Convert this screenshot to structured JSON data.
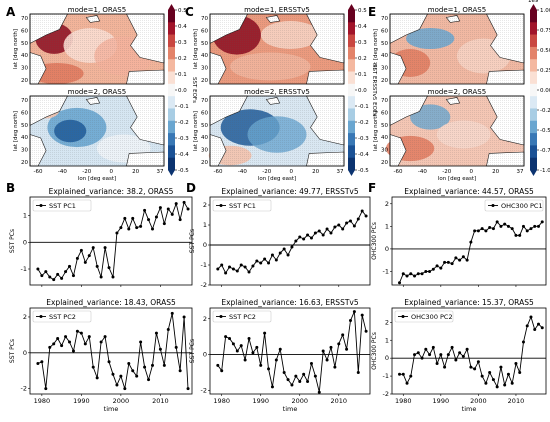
{
  "panels": {
    "A": {
      "letter": "A",
      "maps": [
        {
          "title": "mode=1, ORAS5",
          "pattern": "sst1"
        },
        {
          "title": "mode=2, ORAS5",
          "pattern": "sst2"
        }
      ],
      "ylabel": "lat [deg north]",
      "xlabel": "lon [deg east]",
      "lat_ticks": [
        "70",
        "60",
        "50",
        "40",
        "30",
        "20"
      ],
      "lon_ticks": [
        "-60",
        "-40",
        "-20",
        "0",
        "20",
        "37"
      ]
    },
    "C": {
      "letter": "C",
      "maps": [
        {
          "title": "mode=1, ERSSTv5",
          "pattern": "ers1"
        },
        {
          "title": "mode=2, ERSSTv5",
          "pattern": "ers2"
        }
      ],
      "ylabel": "lat [deg north]",
      "xlabel": "lon [deg east]",
      "lat_ticks": [
        "70",
        "60",
        "50",
        "40",
        "30",
        "20"
      ],
      "lon_ticks": [
        "-60",
        "-40",
        "-20",
        "0",
        "20",
        "37"
      ]
    },
    "E": {
      "letter": "E",
      "maps": [
        {
          "title": "mode=1, ORAS5",
          "pattern": "ohc1"
        },
        {
          "title": "mode=2, ORAS5",
          "pattern": "ohc2"
        }
      ],
      "ylabel": "lat [deg north]",
      "xlabel": "lon [deg east]",
      "lat_ticks": [
        "70",
        "60",
        "50",
        "40",
        "30",
        "20"
      ],
      "lon_ticks": [
        "-60",
        "-40",
        "-20",
        "0",
        "20",
        "37"
      ]
    }
  },
  "colorbars": [
    {
      "label": "SST EOFs",
      "ticks": [
        "0.5",
        "0.4",
        "0.3",
        "0.2",
        "0.1",
        "0.0",
        "-0.1",
        "-0.2",
        "-0.3",
        "-0.4",
        "-0.5"
      ],
      "range": [
        -0.5,
        0.5
      ],
      "exponent": ""
    },
    {
      "label": "SST ERSSTv5 EOFs",
      "ticks": [
        "0.5",
        "0.4",
        "0.3",
        "0.2",
        "0.1",
        "0.0",
        "-0.1",
        "-0.2",
        "-0.3",
        "-0.4",
        "-0.5"
      ],
      "range": [
        -0.5,
        0.5
      ],
      "exponent": ""
    },
    {
      "label": "OHC300 EOFs",
      "ticks": [
        "1.00",
        "0.75",
        "0.50",
        "0.25",
        "0.00",
        "-0.25",
        "-0.50",
        "-0.75",
        "-1.00"
      ],
      "range": [
        -1.0,
        1.0
      ],
      "exponent": "1e9"
    }
  ],
  "colors": {
    "warm_dark": "#8b0a1e",
    "warm": "#e07a5f",
    "neutral": "#f7f7f7",
    "cool": "#6aa6d0",
    "cool_dark": "#1f5a99",
    "land": "#ffffff",
    "coast": "#1a1a1a",
    "line": "#000000"
  },
  "chart_data": [
    {
      "panel": "B",
      "type": "line",
      "letter": "B",
      "title": "Explained_variance: 38.2, ORAS5",
      "ylabel": "SST PCs",
      "xlabel": "",
      "ylim": [
        -1.6,
        1.7
      ],
      "yticks": [
        -1,
        0,
        1
      ],
      "xlim": [
        1977,
        2018
      ],
      "xticks": [
        1980,
        1990,
        2000,
        2010
      ],
      "show_xticks": false,
      "legend_loc": "upper-left",
      "grid": false,
      "series": [
        {
          "name": "SST PC1",
          "x": [
            1979,
            1980,
            1981,
            1982,
            1983,
            1984,
            1985,
            1986,
            1987,
            1988,
            1989,
            1990,
            1991,
            1992,
            1993,
            1994,
            1995,
            1996,
            1997,
            1998,
            1999,
            2000,
            2001,
            2002,
            2003,
            2004,
            2005,
            2006,
            2007,
            2008,
            2009,
            2010,
            2011,
            2012,
            2013,
            2014,
            2015,
            2016,
            2017
          ],
          "values": [
            -1.0,
            -1.25,
            -1.1,
            -1.3,
            -1.4,
            -1.2,
            -1.35,
            -1.1,
            -0.9,
            -1.25,
            -0.6,
            -0.3,
            -0.75,
            -0.5,
            -0.2,
            -0.9,
            -1.3,
            -0.2,
            -0.95,
            -1.3,
            0.35,
            0.55,
            0.9,
            0.5,
            0.9,
            0.55,
            0.6,
            1.2,
            0.85,
            0.5,
            0.95,
            1.3,
            0.7,
            1.25,
            1.05,
            1.45,
            0.85,
            1.5,
            1.25
          ]
        }
      ]
    },
    {
      "panel": "B",
      "type": "line",
      "title": "Explained_variance: 18.43, ORAS5",
      "ylabel": "SST PCs",
      "xlabel": "time",
      "ylim": [
        -2.3,
        2.5
      ],
      "yticks": [
        -2,
        0,
        2
      ],
      "xlim": [
        1977,
        2018
      ],
      "xticks": [
        1980,
        1990,
        2000,
        2010
      ],
      "show_xticks": true,
      "legend_loc": "upper-left",
      "grid": false,
      "series": [
        {
          "name": "SST PC2",
          "x": [
            1979,
            1980,
            1981,
            1982,
            1983,
            1984,
            1985,
            1986,
            1987,
            1988,
            1989,
            1990,
            1991,
            1992,
            1993,
            1994,
            1995,
            1996,
            1997,
            1998,
            1999,
            2000,
            2001,
            2002,
            2003,
            2004,
            2005,
            2006,
            2007,
            2008,
            2009,
            2010,
            2011,
            2012,
            2013,
            2014,
            2015,
            2016,
            2017
          ],
          "values": [
            -0.6,
            -0.5,
            -2.0,
            0.3,
            0.5,
            0.8,
            0.4,
            0.9,
            0.6,
            0.1,
            1.2,
            1.1,
            0.5,
            0.9,
            -0.8,
            -1.4,
            0.6,
            0.9,
            -0.5,
            -1.2,
            -1.8,
            -1.3,
            -2.0,
            -0.6,
            -1.0,
            -1.3,
            0.6,
            -0.8,
            -1.5,
            -0.7,
            1.1,
            0.2,
            -0.7,
            1.3,
            2.2,
            0.3,
            -1.0,
            2.0,
            -2.0
          ]
        }
      ]
    },
    {
      "panel": "D",
      "type": "line",
      "letter": "D",
      "title": "Explained_variance: 49.77, ERSSTv5",
      "ylabel": "SST PCs",
      "xlabel": "",
      "ylim": [
        -2.0,
        2.4
      ],
      "yticks": [
        -2,
        -1,
        0,
        1,
        2
      ],
      "xlim": [
        1977,
        2018
      ],
      "xticks": [
        1980,
        1990,
        2000,
        2010
      ],
      "show_xticks": false,
      "legend_loc": "upper-left",
      "grid": false,
      "series": [
        {
          "name": "SST PC1",
          "x": [
            1979,
            1980,
            1981,
            1982,
            1983,
            1984,
            1985,
            1986,
            1987,
            1988,
            1989,
            1990,
            1991,
            1992,
            1993,
            1994,
            1995,
            1996,
            1997,
            1998,
            1999,
            2000,
            2001,
            2002,
            2003,
            2004,
            2005,
            2006,
            2007,
            2008,
            2009,
            2010,
            2011,
            2012,
            2013,
            2014,
            2015,
            2016,
            2017
          ],
          "values": [
            -1.2,
            -1.0,
            -1.4,
            -1.1,
            -1.2,
            -1.3,
            -1.0,
            -1.1,
            -1.35,
            -1.05,
            -0.8,
            -0.9,
            -0.7,
            -0.9,
            -0.5,
            -0.75,
            -0.4,
            -0.2,
            -0.5,
            -0.1,
            0.2,
            0.4,
            0.3,
            0.5,
            0.35,
            0.6,
            0.7,
            0.5,
            0.8,
            0.6,
            0.9,
            1.0,
            0.8,
            1.1,
            1.2,
            0.95,
            1.3,
            1.7,
            1.45
          ]
        }
      ]
    },
    {
      "panel": "D",
      "type": "line",
      "title": "Explained_variance: 16.63, ERSSTv5",
      "ylabel": "SST PCs",
      "xlabel": "time",
      "ylim": [
        -2.2,
        2.6
      ],
      "yticks": [
        -2,
        0,
        2
      ],
      "xlim": [
        1977,
        2018
      ],
      "xticks": [
        1980,
        1990,
        2000,
        2010
      ],
      "show_xticks": true,
      "legend_loc": "upper-left",
      "grid": false,
      "series": [
        {
          "name": "SST PC2",
          "x": [
            1979,
            1980,
            1981,
            1982,
            1983,
            1984,
            1985,
            1986,
            1987,
            1988,
            1989,
            1990,
            1991,
            1992,
            1993,
            1994,
            1995,
            1996,
            1997,
            1998,
            1999,
            2000,
            2001,
            2002,
            2003,
            2004,
            2005,
            2006,
            2007,
            2008,
            2009,
            2010,
            2011,
            2012,
            2013,
            2014,
            2015,
            2016,
            2017
          ],
          "values": [
            -0.6,
            -0.9,
            1.0,
            0.9,
            0.6,
            0.2,
            0.5,
            -0.3,
            0.9,
            0.1,
            0.4,
            -0.6,
            1.2,
            -0.8,
            -1.8,
            -0.3,
            0.3,
            -1.0,
            -1.4,
            -1.7,
            -1.2,
            -1.5,
            -1.1,
            -1.5,
            -0.5,
            -1.2,
            -2.1,
            0.2,
            -0.3,
            0.4,
            -0.7,
            0.6,
            1.1,
            0.3,
            1.9,
            2.4,
            -1.0,
            2.2,
            1.3
          ]
        }
      ]
    },
    {
      "panel": "F",
      "type": "line",
      "letter": "F",
      "title": "Explained_variance: 44.57, ORAS5",
      "ylabel": "OHC300 PCs",
      "xlabel": "",
      "ylim": [
        -1.6,
        2.3
      ],
      "yticks": [
        -1,
        0,
        1,
        2
      ],
      "xlim": [
        1977,
        2018
      ],
      "xticks": [
        1980,
        1990,
        2000,
        2010
      ],
      "show_xticks": false,
      "legend_loc": "upper-right",
      "grid": false,
      "series": [
        {
          "name": "OHC300 PC1",
          "x": [
            1979,
            1980,
            1981,
            1982,
            1983,
            1984,
            1985,
            1986,
            1987,
            1988,
            1989,
            1990,
            1991,
            1992,
            1993,
            1994,
            1995,
            1996,
            1997,
            1998,
            1999,
            2000,
            2001,
            2002,
            2003,
            2004,
            2005,
            2006,
            2007,
            2008,
            2009,
            2010,
            2011,
            2012,
            2013,
            2014,
            2015,
            2016,
            2017
          ],
          "values": [
            -1.5,
            -1.1,
            -1.2,
            -1.1,
            -1.2,
            -1.1,
            -1.1,
            -1.0,
            -1.0,
            -0.9,
            -0.75,
            -0.85,
            -0.6,
            -0.6,
            -0.65,
            -0.4,
            -0.5,
            -0.35,
            -0.5,
            0.3,
            0.8,
            0.8,
            0.9,
            0.8,
            0.95,
            0.9,
            1.2,
            1.0,
            1.1,
            1.0,
            0.9,
            0.6,
            0.6,
            1.0,
            0.8,
            0.9,
            1.0,
            1.0,
            1.2
          ]
        }
      ]
    },
    {
      "panel": "F",
      "type": "line",
      "title": "Explained_variance: 15.37, ORAS5",
      "ylabel": "OHC300 PCs",
      "xlabel": "time",
      "ylim": [
        -2.0,
        2.8
      ],
      "yticks": [
        -2,
        -1,
        0,
        1,
        2
      ],
      "xlim": [
        1977,
        2018
      ],
      "xticks": [
        1980,
        1990,
        2000,
        2010
      ],
      "show_xticks": true,
      "legend_loc": "upper-left",
      "grid": false,
      "series": [
        {
          "name": "OHC300 PC2",
          "x": [
            1979,
            1980,
            1981,
            1982,
            1983,
            1984,
            1985,
            1986,
            1987,
            1988,
            1989,
            1990,
            1991,
            1992,
            1993,
            1994,
            1995,
            1996,
            1997,
            1998,
            1999,
            2000,
            2001,
            2002,
            2003,
            2004,
            2005,
            2006,
            2007,
            2008,
            2009,
            2010,
            2011,
            2012,
            2013,
            2014,
            2015,
            2016,
            2017
          ],
          "values": [
            -0.9,
            -0.9,
            -1.4,
            -1.0,
            0.2,
            0.3,
            0.0,
            0.5,
            0.2,
            0.6,
            -0.3,
            0.2,
            -0.5,
            0.2,
            0.6,
            -0.1,
            0.3,
            0.1,
            0.5,
            -0.5,
            -0.6,
            -0.2,
            -1.0,
            -1.4,
            -0.8,
            -1.2,
            -1.6,
            -0.5,
            -1.5,
            -0.9,
            -1.4,
            -0.3,
            -0.8,
            0.9,
            1.8,
            2.3,
            1.6,
            1.9,
            1.7
          ]
        }
      ]
    }
  ]
}
